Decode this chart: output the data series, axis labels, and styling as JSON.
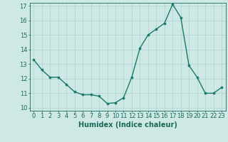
{
  "x": [
    0,
    1,
    2,
    3,
    4,
    5,
    6,
    7,
    8,
    9,
    10,
    11,
    12,
    13,
    14,
    15,
    16,
    17,
    18,
    19,
    20,
    21,
    22,
    23
  ],
  "y": [
    13.3,
    12.6,
    12.1,
    12.1,
    11.6,
    11.1,
    10.9,
    10.9,
    10.8,
    10.3,
    10.35,
    10.7,
    12.1,
    14.1,
    15.0,
    15.4,
    15.8,
    17.1,
    16.2,
    12.9,
    12.1,
    11.0,
    11.0,
    11.4
  ],
  "line_color": "#1a7a6a",
  "marker_color": "#1a7a6a",
  "bg_color": "#cde8e5",
  "grid_color": "#b0d4d0",
  "axis_label_color": "#1a6a5a",
  "tick_label_color": "#1a6a5a",
  "xlabel": "Humidex (Indice chaleur)",
  "xlim": [
    -0.5,
    23.5
  ],
  "ylim": [
    9.8,
    17.2
  ],
  "yticks": [
    10,
    11,
    12,
    13,
    14,
    15,
    16,
    17
  ],
  "xticks": [
    0,
    1,
    2,
    3,
    4,
    5,
    6,
    7,
    8,
    9,
    10,
    11,
    12,
    13,
    14,
    15,
    16,
    17,
    18,
    19,
    20,
    21,
    22,
    23
  ],
  "xlabel_fontsize": 7.0,
  "tick_fontsize": 6.0,
  "linewidth": 1.0,
  "markersize": 2.2
}
